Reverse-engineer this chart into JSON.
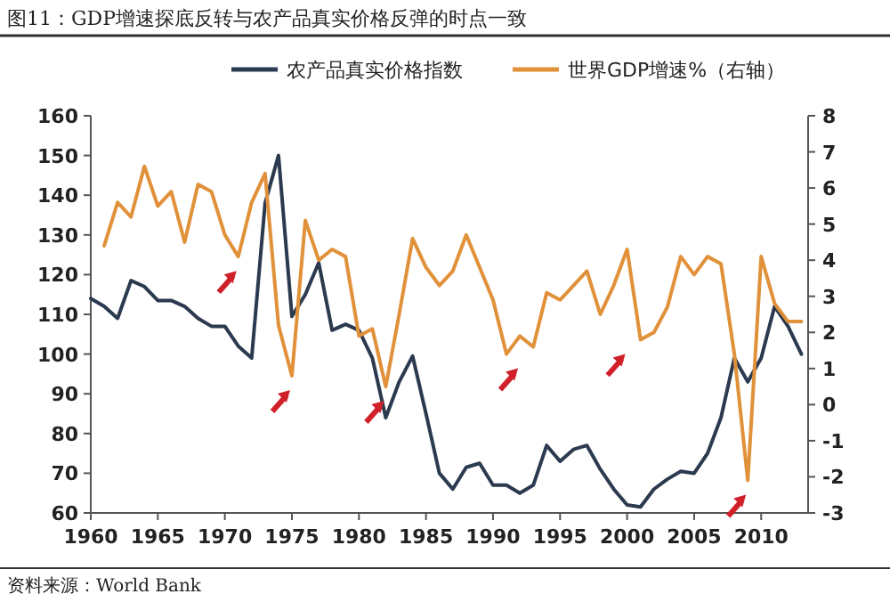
{
  "chart_data": {
    "type": "line",
    "title": "图11：GDP增速探底反转与农产品真实价格反弹的时点一致",
    "annotations": [
      "资料来源：World Bank"
    ],
    "x": [
      1960,
      1961,
      1962,
      1963,
      1964,
      1965,
      1966,
      1967,
      1968,
      1969,
      1970,
      1971,
      1972,
      1973,
      1974,
      1975,
      1976,
      1977,
      1978,
      1979,
      1980,
      1981,
      1982,
      1983,
      1984,
      1985,
      1986,
      1987,
      1988,
      1989,
      1990,
      1991,
      1992,
      1993,
      1994,
      1995,
      1996,
      1997,
      1998,
      1999,
      2000,
      2001,
      2002,
      2003,
      2004,
      2005,
      2006,
      2007,
      2008,
      2009,
      2010,
      2011,
      2012,
      2013
    ],
    "series": [
      {
        "name": "农产品真实价格指数",
        "color": "#2b3a4f",
        "values": [
          114,
          112,
          109,
          118.5,
          117,
          113.5,
          113.5,
          112,
          109,
          107,
          107,
          102,
          99,
          138,
          150,
          109.5,
          115,
          123,
          106,
          107.5,
          106,
          99,
          84,
          93,
          99.5,
          85,
          70,
          66,
          71.5,
          72.5,
          67,
          67,
          65,
          67,
          77,
          73,
          76,
          77,
          71,
          66,
          62,
          61.5,
          66,
          68.5,
          70.5,
          70,
          75,
          84,
          99,
          93,
          99,
          112,
          107,
          100
        ]
      },
      {
        "name": "世界GDP增速%（右轴）",
        "color": "#e0913a",
        "axis": "y2",
        "values": [
          null,
          4.4,
          5.6,
          5.2,
          6.6,
          5.5,
          5.9,
          4.5,
          6.1,
          5.9,
          4.7,
          4.1,
          5.6,
          6.4,
          2.2,
          0.8,
          5.1,
          4.0,
          4.3,
          4.1,
          1.9,
          2.1,
          0.5,
          2.5,
          4.6,
          3.8,
          3.3,
          3.7,
          4.7,
          3.8,
          2.9,
          1.4,
          1.9,
          1.6,
          3.1,
          2.9,
          3.3,
          3.7,
          2.5,
          3.3,
          4.3,
          1.8,
          2.0,
          2.7,
          4.1,
          3.6,
          4.1,
          3.9,
          1.4,
          -2.1,
          4.1,
          2.8,
          2.3,
          2.3
        ]
      }
    ],
    "xlim": [
      1960,
      2013.5
    ],
    "xticks": [
      1960,
      1965,
      1970,
      1975,
      1980,
      1985,
      1990,
      1995,
      2000,
      2005,
      2010
    ],
    "ylim": [
      60,
      160
    ],
    "yticks": [
      60,
      70,
      80,
      90,
      100,
      110,
      120,
      130,
      140,
      150,
      160
    ],
    "y2lim": [
      -3,
      8
    ],
    "y2ticks": [
      -3,
      -2,
      -1,
      0,
      1,
      2,
      3,
      4,
      5,
      6,
      7,
      8
    ],
    "legend": "top",
    "grid": false,
    "marker": "none",
    "line_style": "solid"
  }
}
